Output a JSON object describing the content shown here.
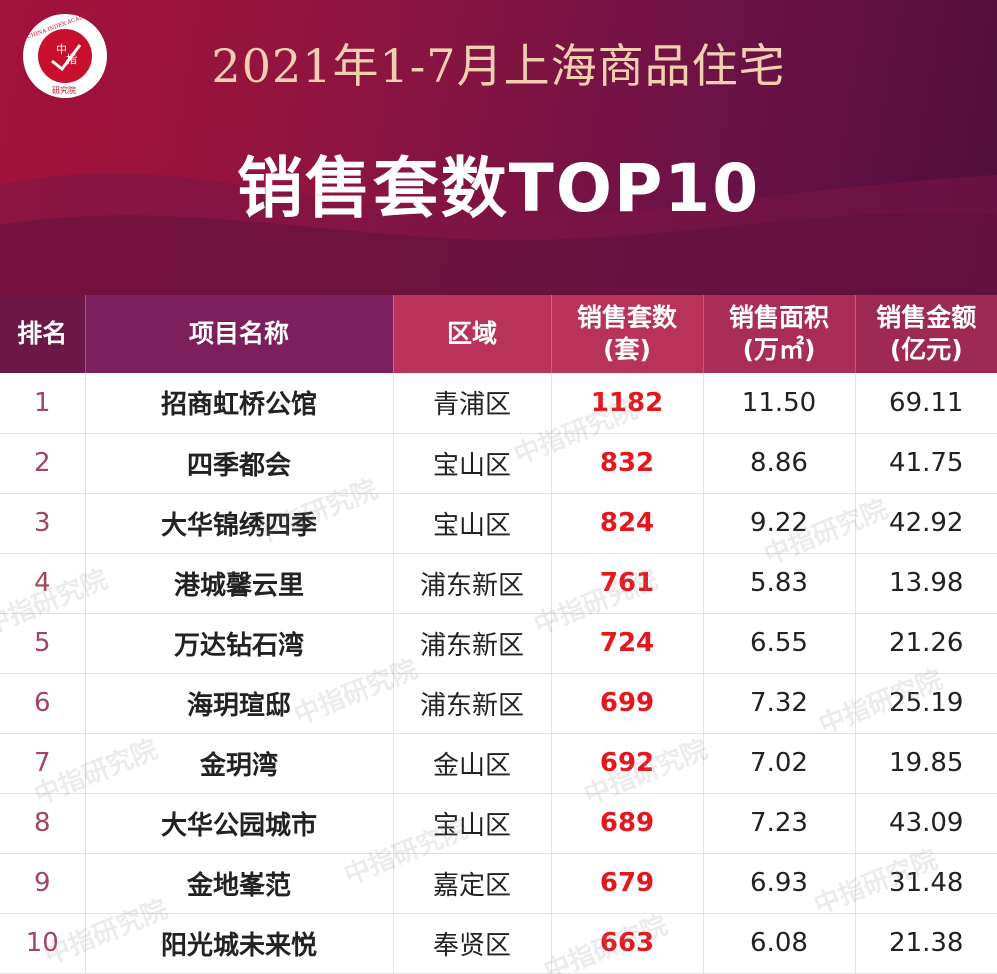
{
  "header": {
    "logo": {
      "center_text": "中指",
      "ring_text": "CHINA INDEX ACADEMY",
      "bottom_text": "研究院"
    },
    "subtitle": "2021年1-7月上海商品住宅",
    "title": "销售套数TOP10"
  },
  "table": {
    "columns": {
      "rank": "排名",
      "name": "项目名称",
      "district": "区域",
      "units_line1": "销售套数",
      "units_line2": "(套)",
      "area_line1": "销售面积",
      "area_line2": "(万㎡)",
      "amount_line1": "销售金额",
      "amount_line2": "(亿元)"
    },
    "rows": [
      {
        "rank": "1",
        "name": "招商虹桥公馆",
        "district": "青浦区",
        "units": "1182",
        "area": "11.50",
        "amount": "69.11"
      },
      {
        "rank": "2",
        "name": "四季都会",
        "district": "宝山区",
        "units": "832",
        "area": "8.86",
        "amount": "41.75"
      },
      {
        "rank": "3",
        "name": "大华锦绣四季",
        "district": "宝山区",
        "units": "824",
        "area": "9.22",
        "amount": "42.92"
      },
      {
        "rank": "4",
        "name": "港城馨云里",
        "district": "浦东新区",
        "units": "761",
        "area": "5.83",
        "amount": "13.98"
      },
      {
        "rank": "5",
        "name": "万达钻石湾",
        "district": "浦东新区",
        "units": "724",
        "area": "6.55",
        "amount": "21.26"
      },
      {
        "rank": "6",
        "name": "海玥瑄邸",
        "district": "浦东新区",
        "units": "699",
        "area": "7.32",
        "amount": "25.19"
      },
      {
        "rank": "7",
        "name": "金玥湾",
        "district": "金山区",
        "units": "692",
        "area": "7.02",
        "amount": "19.85"
      },
      {
        "rank": "8",
        "name": "大华公园城市",
        "district": "宝山区",
        "units": "689",
        "area": "7.23",
        "amount": "43.09"
      },
      {
        "rank": "9",
        "name": "金地峯范",
        "district": "嘉定区",
        "units": "679",
        "area": "6.93",
        "amount": "31.48"
      },
      {
        "rank": "10",
        "name": "阳光城未来悦",
        "district": "奉贤区",
        "units": "663",
        "area": "6.08",
        "amount": "21.38"
      }
    ]
  },
  "watermark": "中指研究院",
  "colors": {
    "banner": "#8e1440",
    "units_highlight": "#e5161e",
    "subtitle": "#f1cfb0"
  }
}
